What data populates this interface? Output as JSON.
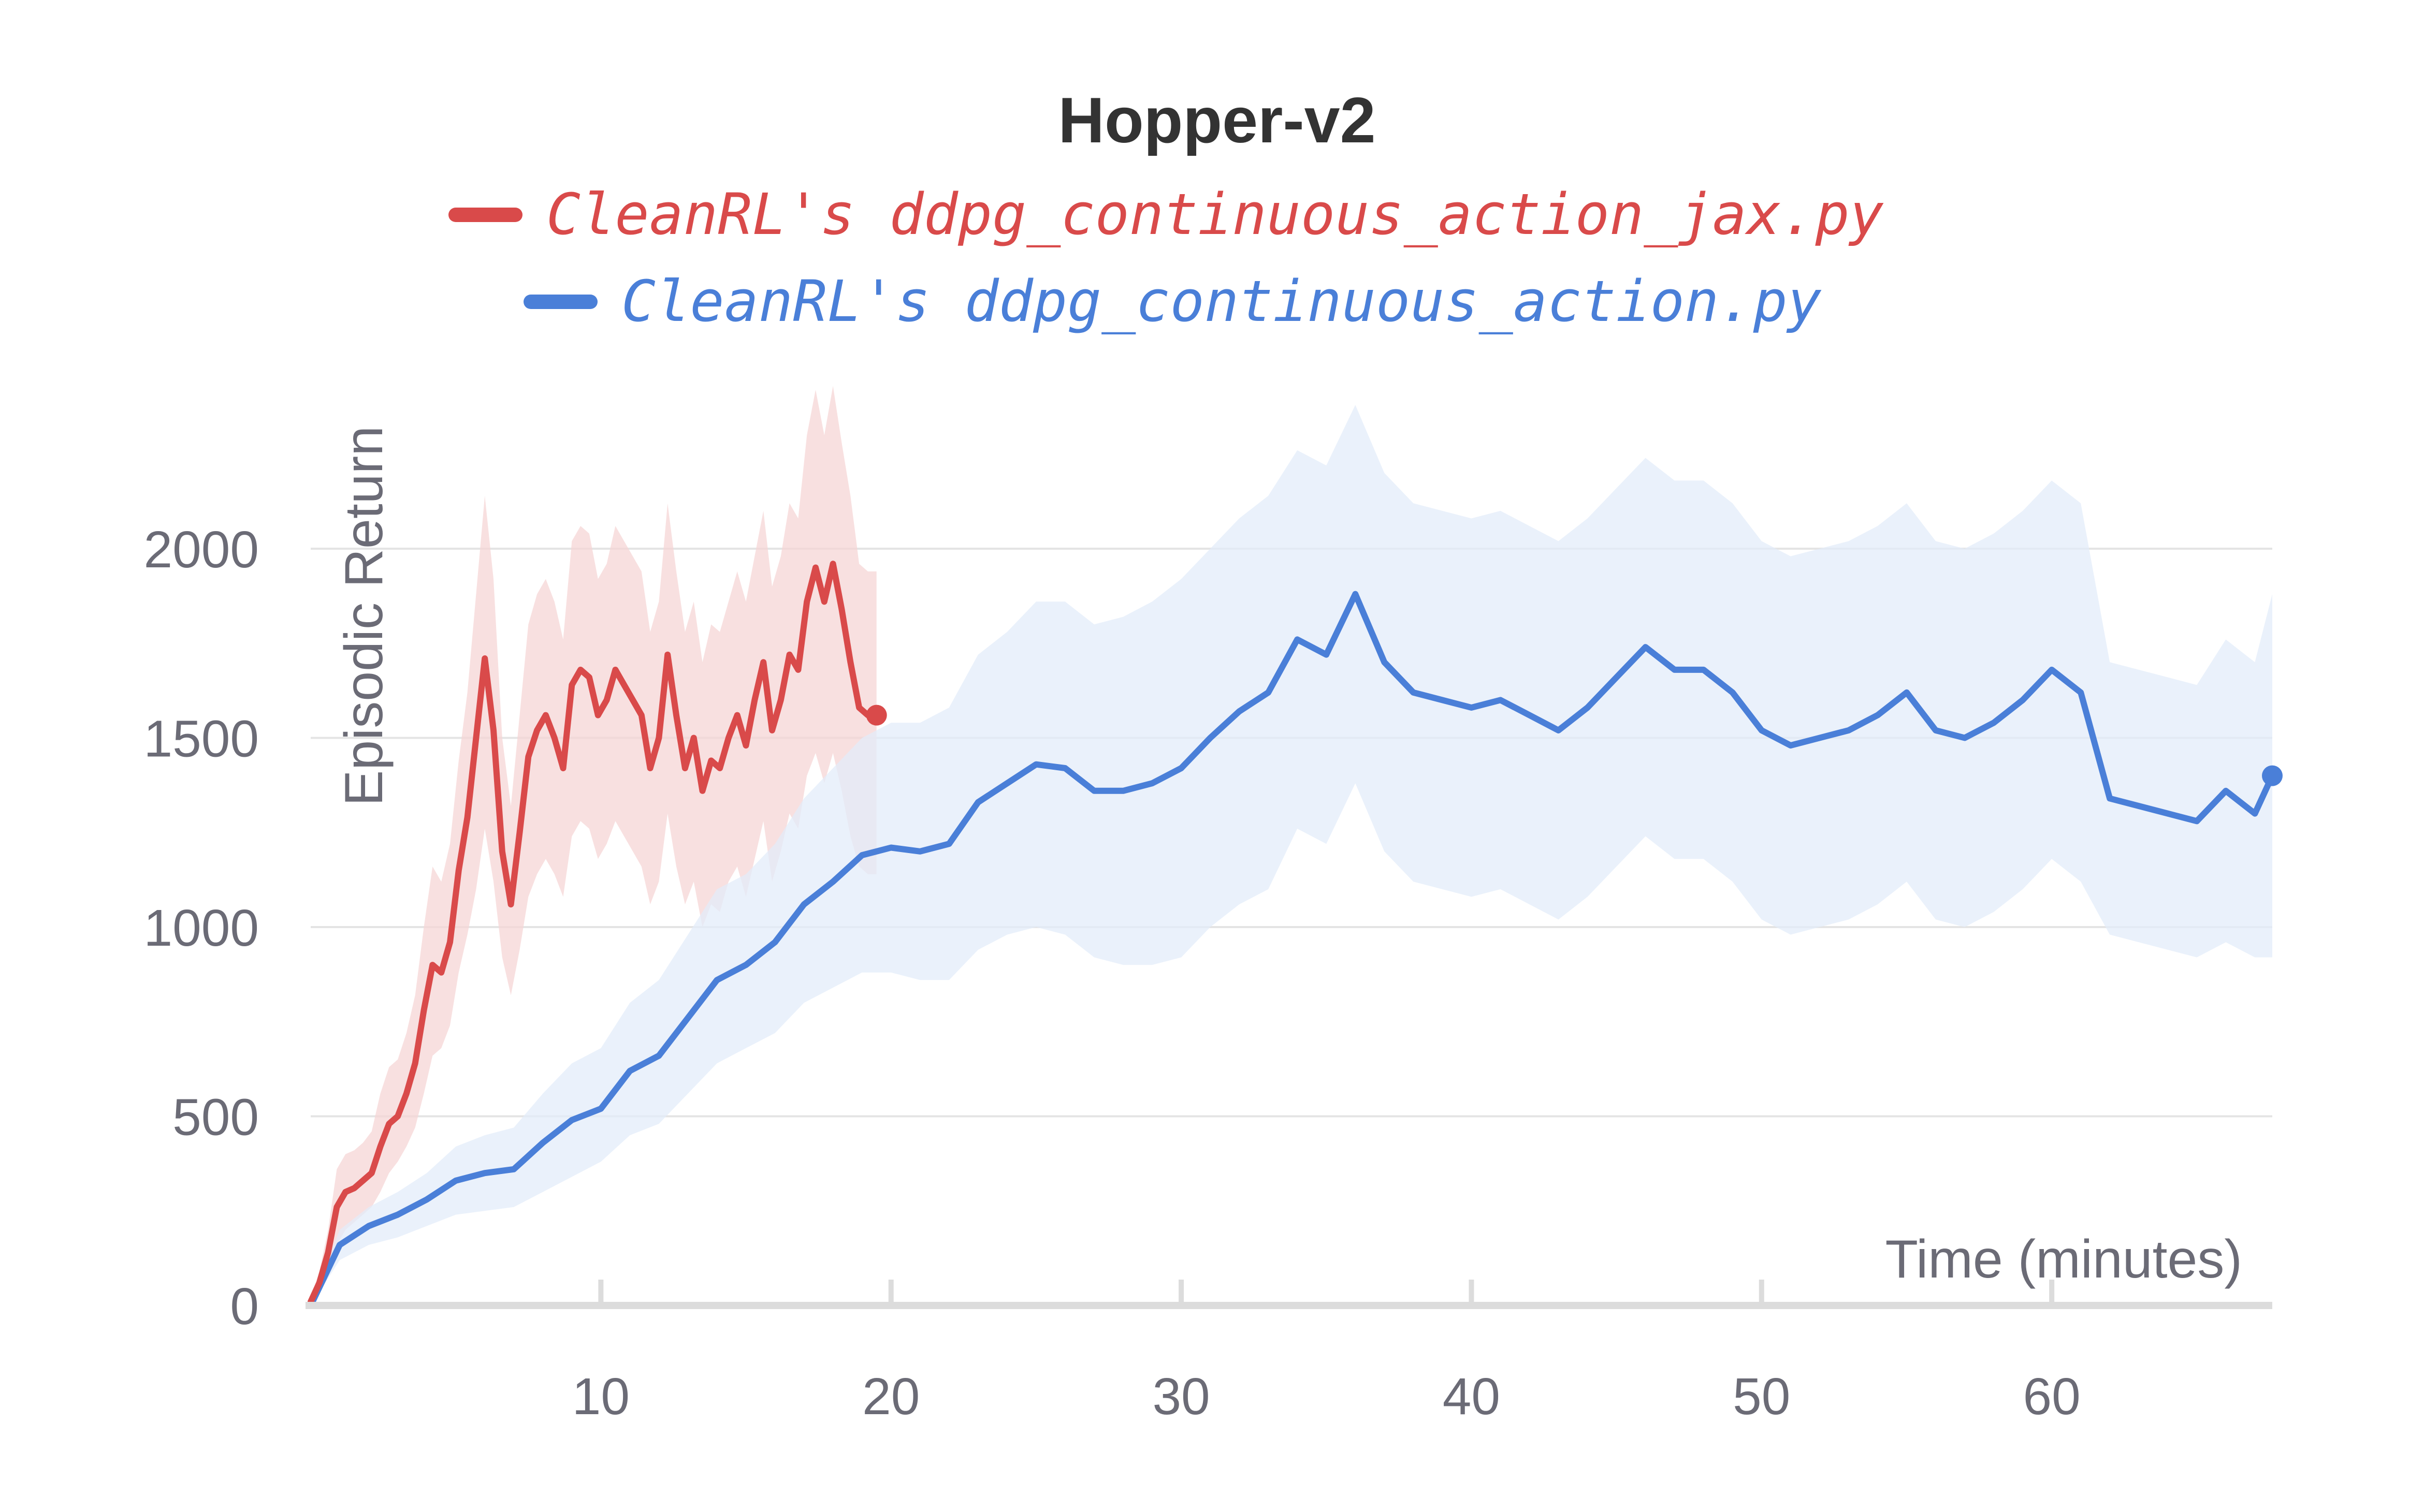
{
  "chart_data": {
    "type": "line",
    "title": "Hopper-v2",
    "xlabel": "Time (minutes)",
    "ylabel": "Episodic Return",
    "xlim": [
      0,
      67.6
    ],
    "ylim": [
      0,
      2000
    ],
    "x_ticks": [
      10,
      20,
      30,
      40,
      50,
      60
    ],
    "y_ticks": [
      0,
      500,
      1000,
      1500,
      2000
    ],
    "grid": true,
    "legend_position": "top-center",
    "series": [
      {
        "name": "CleanRL's ddpg_continuous_action_jax.py",
        "color": "#d94a4a",
        "band_color": "#f6d6d6",
        "x": [
          0,
          0.3,
          0.6,
          0.9,
          1.2,
          1.5,
          1.8,
          2.1,
          2.4,
          2.7,
          3.0,
          3.3,
          3.6,
          3.9,
          4.2,
          4.5,
          4.8,
          5.1,
          5.4,
          5.7,
          6.0,
          6.3,
          6.6,
          6.9,
          7.2,
          7.5,
          7.8,
          8.1,
          8.4,
          8.7,
          9.0,
          9.3,
          9.6,
          9.9,
          10.2,
          10.5,
          10.8,
          11.1,
          11.4,
          11.7,
          12.0,
          12.3,
          12.6,
          12.9,
          13.2,
          13.5,
          13.8,
          14.1,
          14.4,
          14.7,
          15.0,
          15.3,
          15.6,
          15.9,
          16.2,
          16.5,
          16.8,
          17.1,
          17.4,
          17.7,
          18.0,
          18.3,
          18.6,
          18.9,
          19.2,
          19.5
        ],
        "y": [
          10,
          60,
          140,
          260,
          300,
          310,
          330,
          350,
          420,
          480,
          500,
          560,
          640,
          780,
          900,
          880,
          960,
          1150,
          1290,
          1500,
          1710,
          1520,
          1200,
          1060,
          1250,
          1450,
          1520,
          1560,
          1500,
          1420,
          1640,
          1680,
          1660,
          1560,
          1600,
          1680,
          1640,
          1600,
          1560,
          1420,
          1500,
          1720,
          1560,
          1420,
          1500,
          1360,
          1440,
          1420,
          1500,
          1560,
          1480,
          1600,
          1700,
          1520,
          1600,
          1720,
          1680,
          1860,
          1950,
          1860,
          1960,
          1840,
          1700,
          1580,
          1560,
          1560
        ],
        "y_low": [
          0,
          30,
          80,
          160,
          200,
          220,
          240,
          260,
          300,
          350,
          380,
          420,
          470,
          560,
          660,
          680,
          740,
          880,
          980,
          1100,
          1260,
          1120,
          920,
          820,
          940,
          1080,
          1140,
          1180,
          1140,
          1080,
          1240,
          1280,
          1260,
          1180,
          1220,
          1280,
          1240,
          1200,
          1160,
          1060,
          1120,
          1300,
          1160,
          1060,
          1120,
          1000,
          1060,
          1040,
          1120,
          1160,
          1080,
          1180,
          1280,
          1120,
          1200,
          1300,
          1260,
          1400,
          1460,
          1380,
          1460,
          1360,
          1240,
          1160,
          1140,
          1140
        ],
        "y_high": [
          20,
          90,
          200,
          360,
          400,
          410,
          430,
          460,
          560,
          630,
          650,
          720,
          820,
          1000,
          1160,
          1120,
          1220,
          1440,
          1620,
          1880,
          2140,
          1920,
          1500,
          1320,
          1560,
          1800,
          1880,
          1920,
          1860,
          1760,
          2020,
          2060,
          2040,
          1920,
          1960,
          2060,
          2020,
          1980,
          1940,
          1780,
          1860,
          2120,
          1940,
          1780,
          1860,
          1700,
          1800,
          1780,
          1860,
          1940,
          1860,
          1980,
          2100,
          1900,
          1980,
          2120,
          2080,
          2300,
          2420,
          2300,
          2430,
          2280,
          2140,
          1960,
          1940,
          1940
        ]
      },
      {
        "name": "CleanRL's ddpg_continuous_action.py",
        "color": "#4a7fd8",
        "band_color": "#e3ecfa",
        "x": [
          0,
          1,
          2,
          3,
          4,
          5,
          6,
          7,
          8,
          9,
          10,
          11,
          12,
          13,
          14,
          15,
          16,
          17,
          18,
          19,
          20,
          21,
          22,
          23,
          24,
          25,
          26,
          27,
          28,
          29,
          30,
          31,
          32,
          33,
          34,
          35,
          36,
          37,
          38,
          39,
          40,
          41,
          42,
          43,
          44,
          45,
          46,
          47,
          48,
          49,
          50,
          51,
          52,
          53,
          54,
          55,
          56,
          57,
          58,
          59,
          60,
          61,
          62,
          63,
          64,
          65,
          66,
          67,
          67.6
        ],
        "y": [
          0,
          160,
          210,
          240,
          280,
          330,
          350,
          360,
          430,
          490,
          520,
          620,
          660,
          760,
          860,
          900,
          960,
          1060,
          1120,
          1190,
          1210,
          1200,
          1220,
          1330,
          1380,
          1430,
          1420,
          1360,
          1360,
          1380,
          1420,
          1500,
          1570,
          1620,
          1760,
          1720,
          1880,
          1700,
          1620,
          1600,
          1580,
          1600,
          1560,
          1520,
          1580,
          1660,
          1740,
          1680,
          1680,
          1620,
          1520,
          1480,
          1500,
          1520,
          1560,
          1620,
          1520,
          1500,
          1540,
          1600,
          1680,
          1620,
          1340,
          1320,
          1300,
          1280,
          1360,
          1300,
          1400
        ],
        "y_low": [
          0,
          120,
          160,
          180,
          210,
          240,
          250,
          260,
          300,
          340,
          380,
          450,
          480,
          560,
          640,
          680,
          720,
          800,
          840,
          880,
          880,
          860,
          860,
          940,
          980,
          1000,
          980,
          920,
          900,
          900,
          920,
          1000,
          1060,
          1100,
          1260,
          1220,
          1380,
          1200,
          1120,
          1100,
          1080,
          1100,
          1060,
          1020,
          1080,
          1160,
          1240,
          1180,
          1180,
          1120,
          1020,
          980,
          1000,
          1020,
          1060,
          1120,
          1020,
          1000,
          1040,
          1100,
          1180,
          1120,
          980,
          960,
          940,
          920,
          960,
          920,
          920
        ],
        "y_high": [
          0,
          200,
          260,
          300,
          350,
          420,
          450,
          470,
          560,
          640,
          680,
          800,
          860,
          980,
          1100,
          1140,
          1220,
          1340,
          1420,
          1500,
          1540,
          1540,
          1580,
          1720,
          1780,
          1860,
          1860,
          1800,
          1820,
          1860,
          1920,
          2000,
          2080,
          2140,
          2260,
          2220,
          2380,
          2200,
          2120,
          2100,
          2080,
          2100,
          2060,
          2020,
          2080,
          2160,
          2240,
          2180,
          2180,
          2120,
          2020,
          1980,
          2000,
          2020,
          2060,
          2120,
          2020,
          2000,
          2040,
          2100,
          2180,
          2120,
          1700,
          1680,
          1660,
          1640,
          1760,
          1700,
          1880
        ]
      }
    ]
  }
}
